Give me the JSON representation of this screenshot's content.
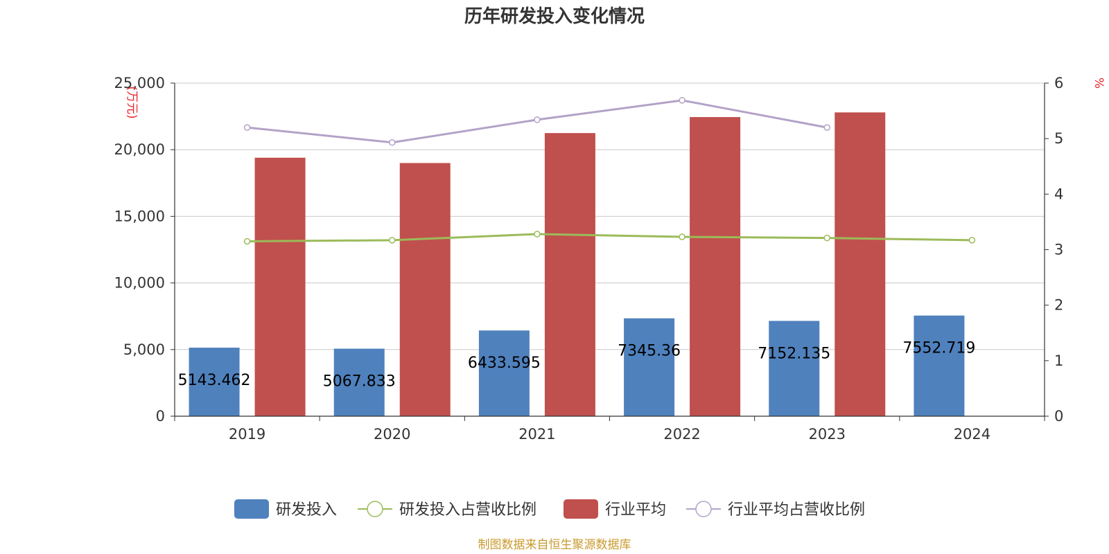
{
  "chart_data": {
    "type": "bar",
    "title": "历年研发投入变化情况",
    "categories": [
      "2019",
      "2020",
      "2021",
      "2022",
      "2023",
      "2024"
    ],
    "y_left": {
      "unit": "(万元)",
      "ylim": [
        0,
        25000
      ],
      "ticks": [
        "0",
        "5,000",
        "10,000",
        "15,000",
        "20,000",
        "25,000"
      ]
    },
    "y_right": {
      "unit": "%",
      "ylim": [
        0,
        6
      ],
      "ticks": [
        "0",
        "1",
        "2",
        "3",
        "4",
        "5",
        "6"
      ]
    },
    "series": [
      {
        "name": "研发投入",
        "type": "bar",
        "axis": "left",
        "color": "#4f81bd",
        "values": [
          5143.462,
          5067.833,
          6433.595,
          7345.36,
          7152.135,
          7552.719
        ],
        "labels": [
          "5143.462",
          "5067.833",
          "6433.595",
          "7345.36",
          "7152.135",
          "7552.719"
        ]
      },
      {
        "name": "研发投入占营收比例",
        "type": "line",
        "axis": "right",
        "color": "#9bbb59",
        "values": [
          3.15,
          3.17,
          3.28,
          3.23,
          3.21,
          3.17
        ]
      },
      {
        "name": "行业平均",
        "type": "bar",
        "axis": "left",
        "color": "#c0504d",
        "values": [
          19400,
          19000,
          21250,
          22450,
          22800,
          null
        ]
      },
      {
        "name": "行业平均占营收比例",
        "type": "line",
        "axis": "right",
        "color": "#b3a2c7",
        "values": [
          5.2,
          4.93,
          5.34,
          5.69,
          5.2,
          null
        ]
      }
    ],
    "grid": true,
    "legend": "bottom-center"
  },
  "source": "制图数据来自恒生聚源数据库"
}
